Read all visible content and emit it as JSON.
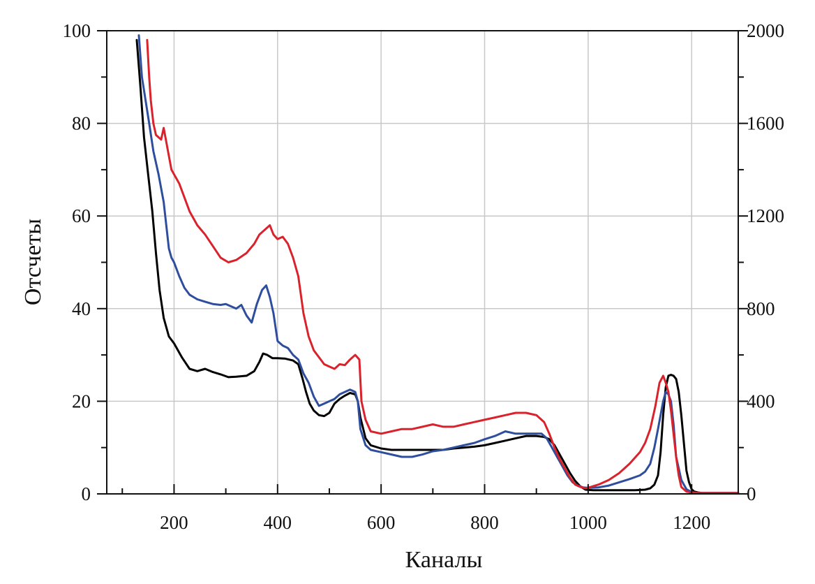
{
  "chart_data": {
    "type": "line",
    "title": "",
    "xlabel": "Каналы",
    "ylabel": "Отсчеты",
    "y2label": "",
    "xlim": [
      70,
      1290
    ],
    "ylim": [
      0,
      100
    ],
    "y2lim": [
      0,
      2000
    ],
    "x_ticks": [
      200,
      400,
      600,
      800,
      1000,
      1200
    ],
    "x_tick_labels": [
      "200",
      "400",
      "600",
      "800",
      "1000",
      "1200"
    ],
    "y_ticks": [
      0,
      20,
      40,
      60,
      80,
      100
    ],
    "y_tick_labels": [
      "0",
      "20",
      "40",
      "60",
      "80",
      "100"
    ],
    "y2_ticks": [
      0,
      400,
      800,
      1200,
      1600,
      2000
    ],
    "y2_tick_labels": [
      "0",
      "400",
      "800",
      "1200",
      "1600",
      "2000"
    ],
    "grid": true,
    "legend": "none",
    "series": [
      {
        "color": "#000000",
        "x": [
          128,
          135,
          142,
          150,
          158,
          165,
          172,
          180,
          190,
          200,
          215,
          230,
          245,
          260,
          275,
          290,
          305,
          320,
          340,
          355,
          365,
          372,
          380,
          390,
          400,
          415,
          430,
          440,
          448,
          455,
          462,
          470,
          480,
          490,
          500,
          510,
          520,
          530,
          540,
          550,
          555,
          560,
          570,
          580,
          600,
          620,
          640,
          660,
          680,
          700,
          720,
          740,
          760,
          780,
          800,
          820,
          840,
          860,
          880,
          900,
          915,
          925,
          935,
          945,
          955,
          965,
          975,
          985,
          995,
          1010,
          1030,
          1050,
          1070,
          1090,
          1110,
          1120,
          1128,
          1135,
          1140,
          1145,
          1150,
          1155,
          1160,
          1165,
          1170,
          1175,
          1180,
          1185,
          1190,
          1195,
          1200,
          1205,
          1212,
          1220,
          1240,
          1260,
          1290
        ],
        "y": [
          98,
          88,
          77,
          69,
          61,
          52,
          44,
          38,
          34,
          32.5,
          29.5,
          27,
          26.5,
          27,
          26.3,
          25.8,
          25.2,
          25.3,
          25.5,
          26.5,
          28.5,
          30.3,
          30,
          29.3,
          29.3,
          29.2,
          28.8,
          28,
          25,
          22,
          19.5,
          18,
          17,
          16.8,
          17.5,
          19.5,
          20.5,
          21.2,
          21.8,
          21.5,
          20,
          16.5,
          12,
          10.5,
          9.8,
          9.5,
          9.5,
          9.5,
          9.5,
          9.5,
          9.5,
          9.8,
          10,
          10.2,
          10.5,
          11,
          11.5,
          12,
          12.5,
          12.5,
          12.3,
          11.8,
          10.5,
          8.5,
          6.5,
          4.5,
          2.8,
          1.6,
          0.9,
          0.8,
          0.8,
          0.8,
          0.8,
          0.8,
          0.9,
          1.2,
          2,
          4,
          9,
          17,
          23,
          25.5,
          25.7,
          25.5,
          24.8,
          22,
          17,
          11,
          5,
          2.5,
          1,
          0.5,
          0.3,
          0.2,
          0.2,
          0.2,
          0.2
        ]
      },
      {
        "color": "#2e4d9c",
        "x": [
          132,
          138,
          145,
          152,
          160,
          170,
          180,
          185,
          190,
          195,
          200,
          210,
          220,
          230,
          245,
          260,
          275,
          290,
          300,
          310,
          320,
          330,
          340,
          350,
          360,
          370,
          378,
          385,
          392,
          400,
          410,
          420,
          430,
          440,
          450,
          460,
          470,
          480,
          490,
          500,
          510,
          520,
          530,
          540,
          550,
          555,
          560,
          570,
          580,
          600,
          620,
          640,
          660,
          680,
          700,
          720,
          740,
          760,
          780,
          800,
          820,
          840,
          860,
          880,
          900,
          910,
          920,
          930,
          940,
          950,
          960,
          970,
          980,
          990,
          1000,
          1020,
          1040,
          1060,
          1080,
          1100,
          1110,
          1120,
          1128,
          1135,
          1140,
          1145,
          1150,
          1155,
          1160,
          1165,
          1170,
          1180,
          1190,
          1200,
          1210,
          1230,
          1260,
          1290
        ],
        "y": [
          99,
          90,
          85,
          80,
          74,
          69,
          63,
          58,
          53,
          51,
          50,
          47,
          44.5,
          43,
          42,
          41.5,
          41,
          40.8,
          41,
          40.5,
          40,
          40.8,
          38.5,
          37,
          41,
          44,
          45,
          42.5,
          39,
          33,
          32,
          31.5,
          30,
          29,
          26,
          24,
          21,
          19,
          19.5,
          20,
          20.5,
          21.5,
          22,
          22.5,
          22,
          20,
          14,
          10.5,
          9.5,
          9,
          8.5,
          8,
          8,
          8.5,
          9.2,
          9.5,
          10,
          10.5,
          11,
          11.8,
          12.5,
          13.5,
          13,
          13,
          13,
          13,
          12,
          10,
          8,
          6,
          4,
          2.5,
          1.8,
          1.4,
          1.3,
          1.4,
          1.8,
          2.5,
          3.2,
          4,
          4.8,
          6.5,
          10,
          14,
          17,
          20,
          22,
          21.5,
          20,
          15,
          8,
          3,
          1,
          0.4,
          0.2,
          0.2,
          0.2,
          0.2
        ]
      },
      {
        "color": "#d9222b",
        "x": [
          148,
          152,
          155,
          160,
          165,
          170,
          175,
          180,
          185,
          190,
          195,
          200,
          210,
          220,
          230,
          245,
          260,
          275,
          290,
          305,
          320,
          340,
          355,
          365,
          375,
          385,
          392,
          400,
          410,
          420,
          430,
          440,
          450,
          460,
          470,
          480,
          490,
          500,
          510,
          520,
          530,
          540,
          550,
          558,
          562,
          570,
          580,
          600,
          620,
          640,
          660,
          680,
          700,
          720,
          740,
          760,
          780,
          800,
          820,
          840,
          860,
          880,
          900,
          915,
          925,
          935,
          945,
          955,
          965,
          975,
          985,
          995,
          1005,
          1020,
          1040,
          1060,
          1080,
          1100,
          1110,
          1120,
          1130,
          1138,
          1145,
          1150,
          1155,
          1160,
          1165,
          1170,
          1175,
          1180,
          1190,
          1200,
          1210,
          1230,
          1260,
          1290
        ],
        "y": [
          98,
          90,
          85,
          80,
          77.5,
          77,
          76.5,
          79,
          76,
          73,
          70,
          69,
          67,
          64,
          61,
          58,
          56,
          53.5,
          51,
          50,
          50.5,
          52,
          54,
          56,
          57,
          58,
          56,
          55,
          55.5,
          54,
          51,
          47,
          39,
          34,
          31,
          29.5,
          28,
          27.5,
          27,
          28,
          27.8,
          29,
          30,
          29,
          20,
          16,
          13.5,
          13,
          13.5,
          14,
          14,
          14.5,
          15,
          14.5,
          14.5,
          15,
          15.5,
          16,
          16.5,
          17,
          17.5,
          17.5,
          17,
          15.5,
          13,
          10,
          7.5,
          5.5,
          3.5,
          2,
          1.5,
          1.2,
          1.5,
          2,
          3,
          4.5,
          6.5,
          9,
          11,
          14,
          19,
          24,
          25.5,
          24,
          22,
          18,
          13,
          8,
          4,
          1.5,
          0.5,
          0.3,
          0.2,
          0.2,
          0.2,
          0.2
        ]
      }
    ]
  }
}
